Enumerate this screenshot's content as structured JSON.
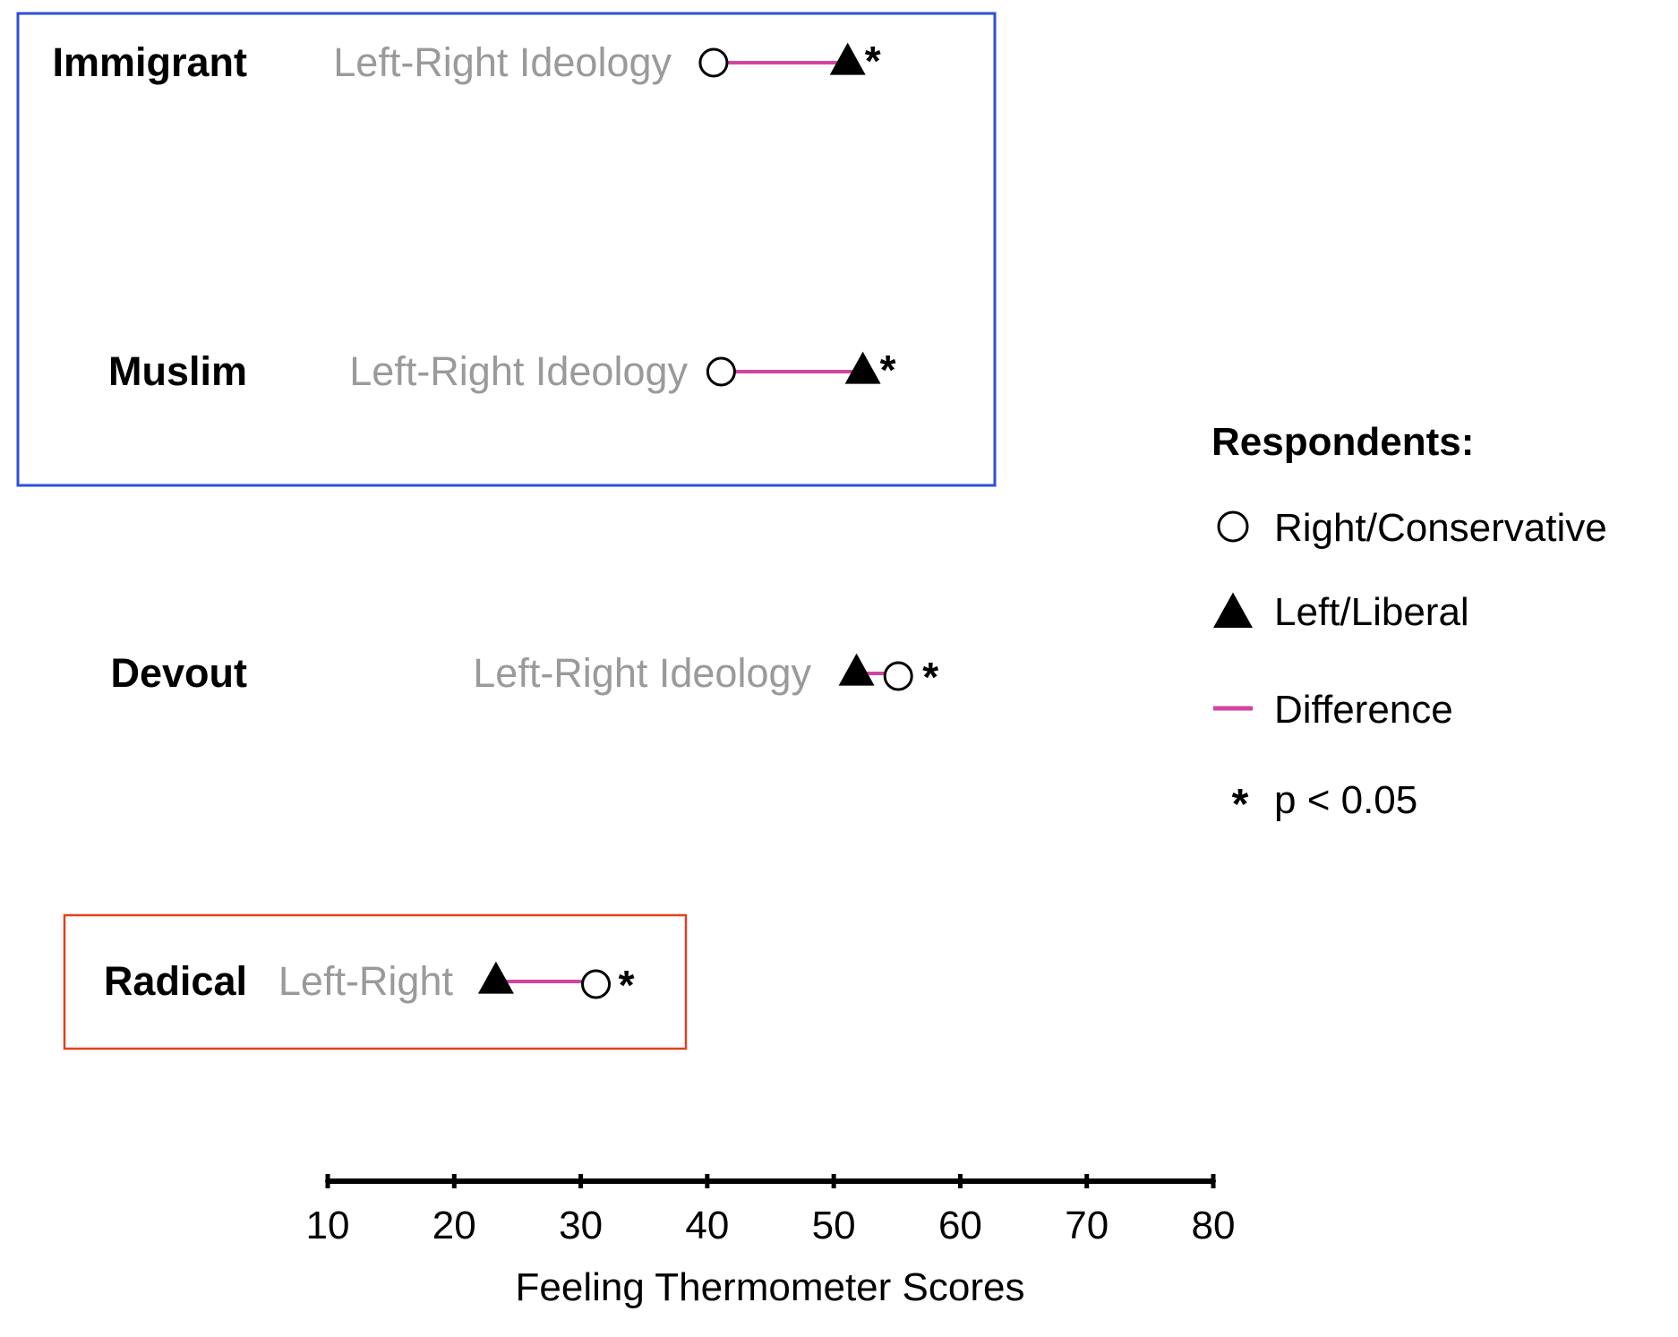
{
  "chart_data": {
    "type": "dumbbell",
    "xlabel": "Feeling Thermometer Scores",
    "xlim": [
      10,
      80
    ],
    "xticks": [
      10,
      20,
      30,
      40,
      50,
      60,
      70,
      80
    ],
    "rows": [
      {
        "group": "Immigrant",
        "variable": "Left-Right Ideology",
        "right_conservative": 40.5,
        "left_liberal": 51.1,
        "significance": "*",
        "highlight": "blue"
      },
      {
        "group": "Muslim",
        "variable": "Left-Right Ideology",
        "right_conservative": 41.1,
        "left_liberal": 52.3,
        "significance": "*",
        "highlight": "blue"
      },
      {
        "group": "Devout",
        "variable": "Left-Right Ideology",
        "right_conservative": 55.1,
        "left_liberal": 51.8,
        "significance": "*",
        "highlight": null
      },
      {
        "group": "Radical",
        "variable": "Left-Right",
        "right_conservative": 31.2,
        "left_liberal": 23.3,
        "significance": "*",
        "highlight": "red"
      }
    ],
    "legend": {
      "title": "Respondents:",
      "items": [
        {
          "symbol": "open-circle",
          "label": "Right/Conservative"
        },
        {
          "symbol": "filled-triangle",
          "label": "Left/Liberal"
        },
        {
          "symbol": "line",
          "label": "Difference"
        },
        {
          "symbol": "asterisk",
          "label": "p < 0.05"
        }
      ]
    },
    "colors": {
      "difference_line": "#d2449e",
      "blue_box": "#2e4fd8",
      "red_box": "#e0401f",
      "variable_label": "#9a9a9a",
      "marker": "#000000"
    }
  }
}
